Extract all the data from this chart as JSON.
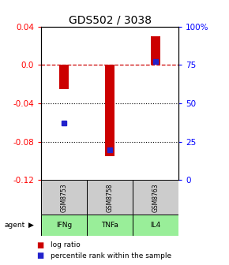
{
  "title": "GDS502 / 3038",
  "categories": [
    "GSM8753",
    "GSM8758",
    "GSM8763"
  ],
  "agents": [
    "IFNg",
    "TNFa",
    "IL4"
  ],
  "log_ratios": [
    -0.025,
    -0.095,
    0.03
  ],
  "percentile_ranks": [
    37,
    20,
    77
  ],
  "ylim_left": [
    -0.12,
    0.04
  ],
  "y_ticks_left": [
    0.04,
    0.0,
    -0.04,
    -0.08,
    -0.12
  ],
  "y_ticks_right": [
    100,
    75,
    50,
    25,
    0
  ],
  "bar_color": "#cc0000",
  "dot_color": "#2222cc",
  "sample_box_color": "#cccccc",
  "agent_box_color": "#99ee99",
  "zero_line_color": "#cc0000",
  "title_fontsize": 10,
  "tick_fontsize": 7.5,
  "legend_fontsize": 6.5,
  "bar_width": 0.2
}
